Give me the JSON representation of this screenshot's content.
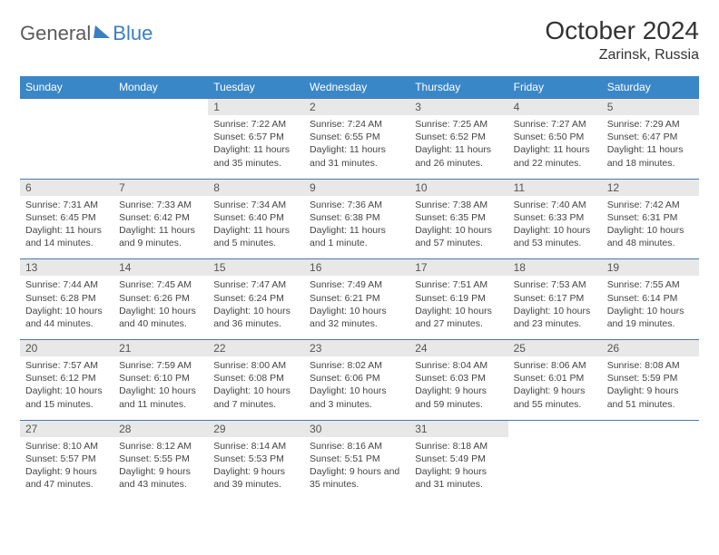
{
  "logo": {
    "general": "General",
    "blue": "Blue"
  },
  "title": "October 2024",
  "location": "Zarinsk, Russia",
  "weekdays": [
    "Sunday",
    "Monday",
    "Tuesday",
    "Wednesday",
    "Thursday",
    "Friday",
    "Saturday"
  ],
  "colors": {
    "header_bg": "#3a87c8",
    "header_text": "#ffffff",
    "daynum_bg": "#e8e8e8",
    "cell_border": "#4a7aaa",
    "logo_blue": "#3a7fc2",
    "text": "#333333"
  },
  "weeks": [
    [
      null,
      null,
      {
        "n": "1",
        "sr": "Sunrise: 7:22 AM",
        "ss": "Sunset: 6:57 PM",
        "dl": "Daylight: 11 hours and 35 minutes."
      },
      {
        "n": "2",
        "sr": "Sunrise: 7:24 AM",
        "ss": "Sunset: 6:55 PM",
        "dl": "Daylight: 11 hours and 31 minutes."
      },
      {
        "n": "3",
        "sr": "Sunrise: 7:25 AM",
        "ss": "Sunset: 6:52 PM",
        "dl": "Daylight: 11 hours and 26 minutes."
      },
      {
        "n": "4",
        "sr": "Sunrise: 7:27 AM",
        "ss": "Sunset: 6:50 PM",
        "dl": "Daylight: 11 hours and 22 minutes."
      },
      {
        "n": "5",
        "sr": "Sunrise: 7:29 AM",
        "ss": "Sunset: 6:47 PM",
        "dl": "Daylight: 11 hours and 18 minutes."
      }
    ],
    [
      {
        "n": "6",
        "sr": "Sunrise: 7:31 AM",
        "ss": "Sunset: 6:45 PM",
        "dl": "Daylight: 11 hours and 14 minutes."
      },
      {
        "n": "7",
        "sr": "Sunrise: 7:33 AM",
        "ss": "Sunset: 6:42 PM",
        "dl": "Daylight: 11 hours and 9 minutes."
      },
      {
        "n": "8",
        "sr": "Sunrise: 7:34 AM",
        "ss": "Sunset: 6:40 PM",
        "dl": "Daylight: 11 hours and 5 minutes."
      },
      {
        "n": "9",
        "sr": "Sunrise: 7:36 AM",
        "ss": "Sunset: 6:38 PM",
        "dl": "Daylight: 11 hours and 1 minute."
      },
      {
        "n": "10",
        "sr": "Sunrise: 7:38 AM",
        "ss": "Sunset: 6:35 PM",
        "dl": "Daylight: 10 hours and 57 minutes."
      },
      {
        "n": "11",
        "sr": "Sunrise: 7:40 AM",
        "ss": "Sunset: 6:33 PM",
        "dl": "Daylight: 10 hours and 53 minutes."
      },
      {
        "n": "12",
        "sr": "Sunrise: 7:42 AM",
        "ss": "Sunset: 6:31 PM",
        "dl": "Daylight: 10 hours and 48 minutes."
      }
    ],
    [
      {
        "n": "13",
        "sr": "Sunrise: 7:44 AM",
        "ss": "Sunset: 6:28 PM",
        "dl": "Daylight: 10 hours and 44 minutes."
      },
      {
        "n": "14",
        "sr": "Sunrise: 7:45 AM",
        "ss": "Sunset: 6:26 PM",
        "dl": "Daylight: 10 hours and 40 minutes."
      },
      {
        "n": "15",
        "sr": "Sunrise: 7:47 AM",
        "ss": "Sunset: 6:24 PM",
        "dl": "Daylight: 10 hours and 36 minutes."
      },
      {
        "n": "16",
        "sr": "Sunrise: 7:49 AM",
        "ss": "Sunset: 6:21 PM",
        "dl": "Daylight: 10 hours and 32 minutes."
      },
      {
        "n": "17",
        "sr": "Sunrise: 7:51 AM",
        "ss": "Sunset: 6:19 PM",
        "dl": "Daylight: 10 hours and 27 minutes."
      },
      {
        "n": "18",
        "sr": "Sunrise: 7:53 AM",
        "ss": "Sunset: 6:17 PM",
        "dl": "Daylight: 10 hours and 23 minutes."
      },
      {
        "n": "19",
        "sr": "Sunrise: 7:55 AM",
        "ss": "Sunset: 6:14 PM",
        "dl": "Daylight: 10 hours and 19 minutes."
      }
    ],
    [
      {
        "n": "20",
        "sr": "Sunrise: 7:57 AM",
        "ss": "Sunset: 6:12 PM",
        "dl": "Daylight: 10 hours and 15 minutes."
      },
      {
        "n": "21",
        "sr": "Sunrise: 7:59 AM",
        "ss": "Sunset: 6:10 PM",
        "dl": "Daylight: 10 hours and 11 minutes."
      },
      {
        "n": "22",
        "sr": "Sunrise: 8:00 AM",
        "ss": "Sunset: 6:08 PM",
        "dl": "Daylight: 10 hours and 7 minutes."
      },
      {
        "n": "23",
        "sr": "Sunrise: 8:02 AM",
        "ss": "Sunset: 6:06 PM",
        "dl": "Daylight: 10 hours and 3 minutes."
      },
      {
        "n": "24",
        "sr": "Sunrise: 8:04 AM",
        "ss": "Sunset: 6:03 PM",
        "dl": "Daylight: 9 hours and 59 minutes."
      },
      {
        "n": "25",
        "sr": "Sunrise: 8:06 AM",
        "ss": "Sunset: 6:01 PM",
        "dl": "Daylight: 9 hours and 55 minutes."
      },
      {
        "n": "26",
        "sr": "Sunrise: 8:08 AM",
        "ss": "Sunset: 5:59 PM",
        "dl": "Daylight: 9 hours and 51 minutes."
      }
    ],
    [
      {
        "n": "27",
        "sr": "Sunrise: 8:10 AM",
        "ss": "Sunset: 5:57 PM",
        "dl": "Daylight: 9 hours and 47 minutes."
      },
      {
        "n": "28",
        "sr": "Sunrise: 8:12 AM",
        "ss": "Sunset: 5:55 PM",
        "dl": "Daylight: 9 hours and 43 minutes."
      },
      {
        "n": "29",
        "sr": "Sunrise: 8:14 AM",
        "ss": "Sunset: 5:53 PM",
        "dl": "Daylight: 9 hours and 39 minutes."
      },
      {
        "n": "30",
        "sr": "Sunrise: 8:16 AM",
        "ss": "Sunset: 5:51 PM",
        "dl": "Daylight: 9 hours and 35 minutes."
      },
      {
        "n": "31",
        "sr": "Sunrise: 8:18 AM",
        "ss": "Sunset: 5:49 PM",
        "dl": "Daylight: 9 hours and 31 minutes."
      },
      null,
      null
    ]
  ]
}
